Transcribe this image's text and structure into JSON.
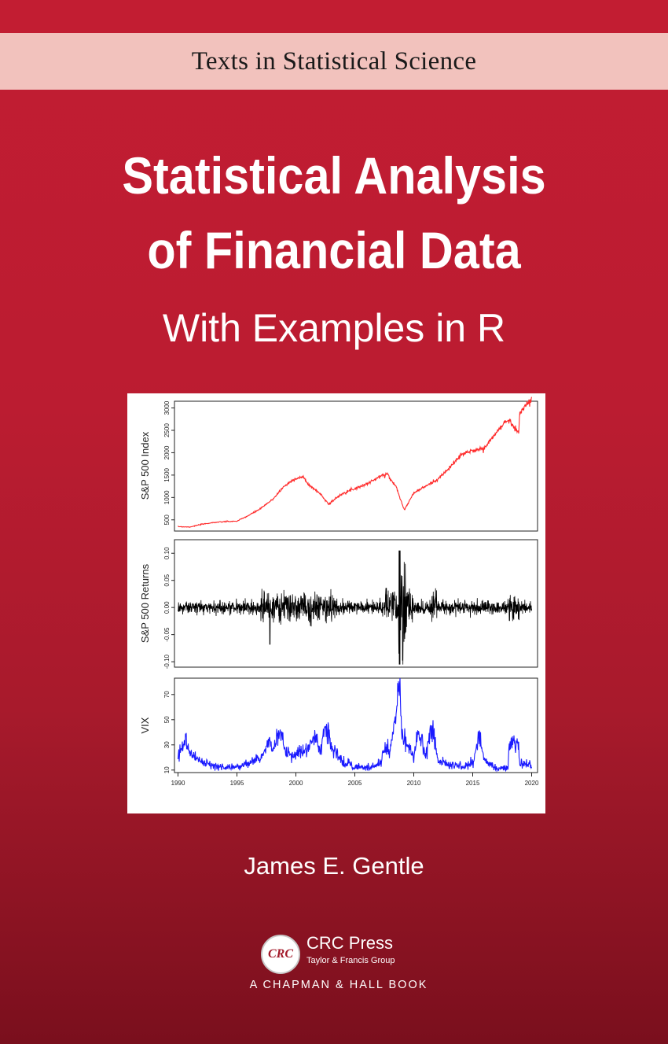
{
  "series": "Texts in Statistical Science",
  "title_line1": "Statistical Analysis",
  "title_line2": "of Financial Data",
  "subtitle": "With Examples in R",
  "author": "James E. Gentle",
  "publisher": {
    "logo_text": "CRC",
    "name": "CRC Press",
    "group": "Taylor & Francis Group",
    "imprint": "A CHAPMAN & HALL BOOK"
  },
  "colors": {
    "cover_red": "#bb1c31",
    "band": "#f2c2bd",
    "sp500_line": "#ff2a2a",
    "returns_line": "#000000",
    "vix_line": "#1a1aff"
  },
  "chart_data": [
    {
      "type": "line",
      "ylabel": "S&P 500 Index",
      "yticks": [
        "500",
        "1000",
        "1500",
        "2000",
        "2500",
        "3000"
      ],
      "ylim": [
        250,
        3150
      ],
      "xlim": [
        1989.7,
        2020.5
      ],
      "x": [
        1990,
        1991,
        1992,
        1993,
        1994,
        1995,
        1996,
        1997,
        1998,
        1999,
        2000,
        2000.7,
        2001,
        2002,
        2002.8,
        2003,
        2004,
        2005,
        2006,
        2007,
        2007.8,
        2008,
        2008.5,
        2009.2,
        2010,
        2011,
        2012,
        2013,
        2014,
        2015,
        2016,
        2017,
        2018,
        2018.9,
        2019,
        2020
      ],
      "values": [
        350,
        340,
        400,
        440,
        460,
        470,
        600,
        750,
        950,
        1250,
        1430,
        1450,
        1300,
        1100,
        850,
        900,
        1100,
        1200,
        1300,
        1450,
        1540,
        1400,
        1250,
        720,
        1100,
        1250,
        1400,
        1650,
        1950,
        2050,
        2100,
        2450,
        2750,
        2450,
        2900,
        3200
      ]
    },
    {
      "type": "line",
      "ylabel": "S&P 500 Returns",
      "yticks": [
        "-0.10",
        "-0.05",
        "0.00",
        "0.05",
        "0.10"
      ],
      "ylim": [
        -0.11,
        0.125
      ],
      "xlim": [
        1989.7,
        2020.5
      ],
      "note": "daily log returns, dense noise with extreme values near 2008"
    },
    {
      "type": "line",
      "ylabel": "VIX",
      "yticks": [
        "10",
        "30",
        "50",
        "70"
      ],
      "xticks": [
        "1990",
        "1995",
        "2000",
        "2005",
        "2010",
        "2015",
        "2020"
      ],
      "ylim": [
        8,
        83
      ],
      "xlim": [
        1989.7,
        2020.5
      ],
      "x": [
        1990,
        1990.6,
        1991,
        1992,
        1993,
        1994,
        1995,
        1996,
        1997,
        1997.8,
        1998,
        1998.7,
        1999,
        2000,
        2001,
        2001.7,
        2002,
        2002.6,
        2003,
        2004,
        2005,
        2006,
        2007,
        2007.6,
        2008,
        2008.8,
        2009,
        2009.5,
        2010,
        2010.4,
        2011,
        2011.6,
        2012,
        2013,
        2014,
        2015,
        2015.6,
        2016,
        2017,
        2018,
        2018.1,
        2018.9,
        2019,
        2020
      ],
      "values": [
        20,
        35,
        24,
        16,
        13,
        12,
        12,
        16,
        20,
        34,
        22,
        45,
        25,
        24,
        27,
        38,
        25,
        44,
        30,
        16,
        13,
        12,
        14,
        28,
        25,
        80,
        40,
        28,
        20,
        42,
        22,
        45,
        18,
        14,
        13,
        15,
        38,
        18,
        11,
        12,
        35,
        30,
        15,
        14
      ]
    }
  ]
}
